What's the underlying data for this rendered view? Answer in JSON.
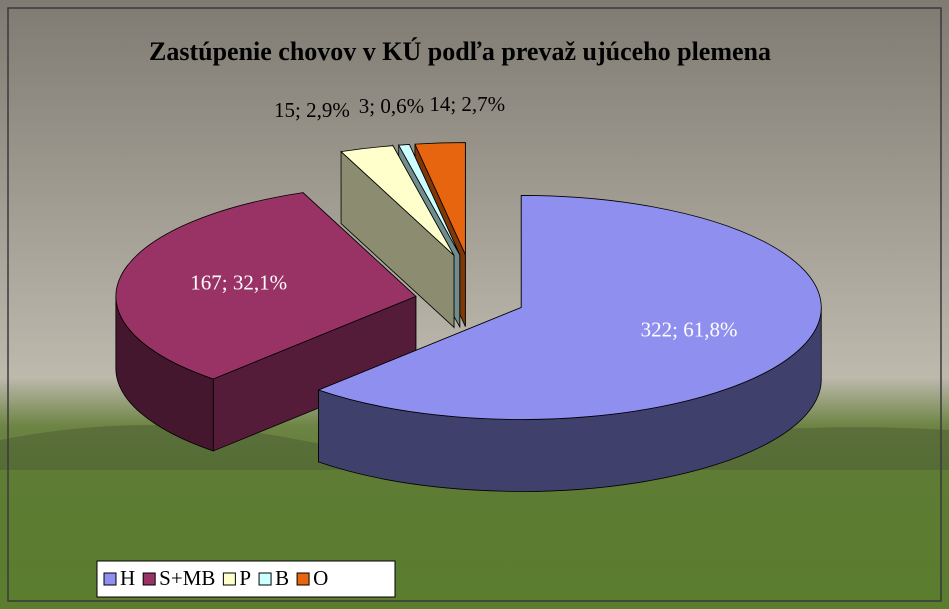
{
  "chart_data": {
    "type": "pie3d",
    "title": "Zastúpenie chovov v KÚ podľa prevaž ujúceho plemena",
    "categories": [
      "H",
      "S+MB",
      "P",
      "B",
      "O"
    ],
    "values": [
      322,
      167,
      15,
      3,
      14
    ],
    "value_labels": [
      "322; 61,8%",
      "167; 32,1%",
      "15; 2,9%",
      "3; 0,6%",
      "14; 2,7%"
    ],
    "colors": [
      "#8f8fef",
      "#993366",
      "#ffffcc",
      "#ccffff",
      "#e8650f"
    ],
    "legend": "bottom-left"
  }
}
